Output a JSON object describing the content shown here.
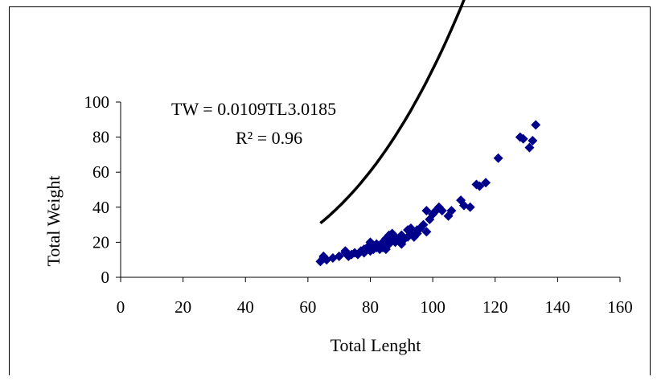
{
  "chart_data": {
    "type": "scatter",
    "xlabel": "Total Lenght",
    "ylabel": "Total Weight",
    "xlim": [
      0,
      160
    ],
    "ylim": [
      0,
      100
    ],
    "x_ticks": [
      "0",
      "20",
      "40",
      "60",
      "80",
      "100",
      "120",
      "140",
      "160"
    ],
    "y_ticks": [
      "0",
      "20",
      "40",
      "60",
      "80",
      "100"
    ],
    "grid": false,
    "legend": "none",
    "marker_color": "#00008B",
    "trend_color": "#000000",
    "annotations": {
      "equation": "TW = 0.0109TL3.0185",
      "r_squared": "R² = 0.96"
    },
    "trendline": {
      "type": "power",
      "coefficient": 0.0109,
      "exponent": 3.0185,
      "x_range": [
        64,
        133
      ]
    },
    "series": [
      {
        "points": [
          [
            64,
            9
          ],
          [
            65,
            11
          ],
          [
            65,
            12
          ],
          [
            66,
            10
          ],
          [
            68,
            11
          ],
          [
            70,
            12
          ],
          [
            72,
            14
          ],
          [
            72,
            15
          ],
          [
            73,
            12
          ],
          [
            74,
            13
          ],
          [
            75,
            14
          ],
          [
            76,
            13
          ],
          [
            77,
            15
          ],
          [
            78,
            14
          ],
          [
            78,
            16
          ],
          [
            79,
            17
          ],
          [
            80,
            15
          ],
          [
            80,
            18
          ],
          [
            80,
            20
          ],
          [
            81,
            16
          ],
          [
            82,
            17
          ],
          [
            82,
            19
          ],
          [
            83,
            16
          ],
          [
            83,
            18
          ],
          [
            84,
            17
          ],
          [
            84,
            20
          ],
          [
            85,
            16
          ],
          [
            85,
            22
          ],
          [
            86,
            19
          ],
          [
            86,
            24
          ],
          [
            87,
            21
          ],
          [
            87,
            25
          ],
          [
            88,
            20
          ],
          [
            88,
            23
          ],
          [
            89,
            22
          ],
          [
            90,
            19
          ],
          [
            90,
            24
          ],
          [
            91,
            22
          ],
          [
            92,
            23
          ],
          [
            92,
            27
          ],
          [
            93,
            25
          ],
          [
            93,
            28
          ],
          [
            94,
            23
          ],
          [
            95,
            25
          ],
          [
            95,
            27
          ],
          [
            96,
            28
          ],
          [
            97,
            30
          ],
          [
            98,
            26
          ],
          [
            98,
            38
          ],
          [
            99,
            33
          ],
          [
            100,
            36
          ],
          [
            101,
            38
          ],
          [
            102,
            40
          ],
          [
            103,
            38
          ],
          [
            105,
            35
          ],
          [
            106,
            38
          ],
          [
            109,
            44
          ],
          [
            110,
            41
          ],
          [
            112,
            40
          ],
          [
            114,
            53
          ],
          [
            115,
            52
          ],
          [
            117,
            54
          ],
          [
            121,
            68
          ],
          [
            128,
            80
          ],
          [
            129,
            79
          ],
          [
            131,
            74
          ],
          [
            132,
            78
          ],
          [
            133,
            87
          ]
        ]
      }
    ]
  }
}
